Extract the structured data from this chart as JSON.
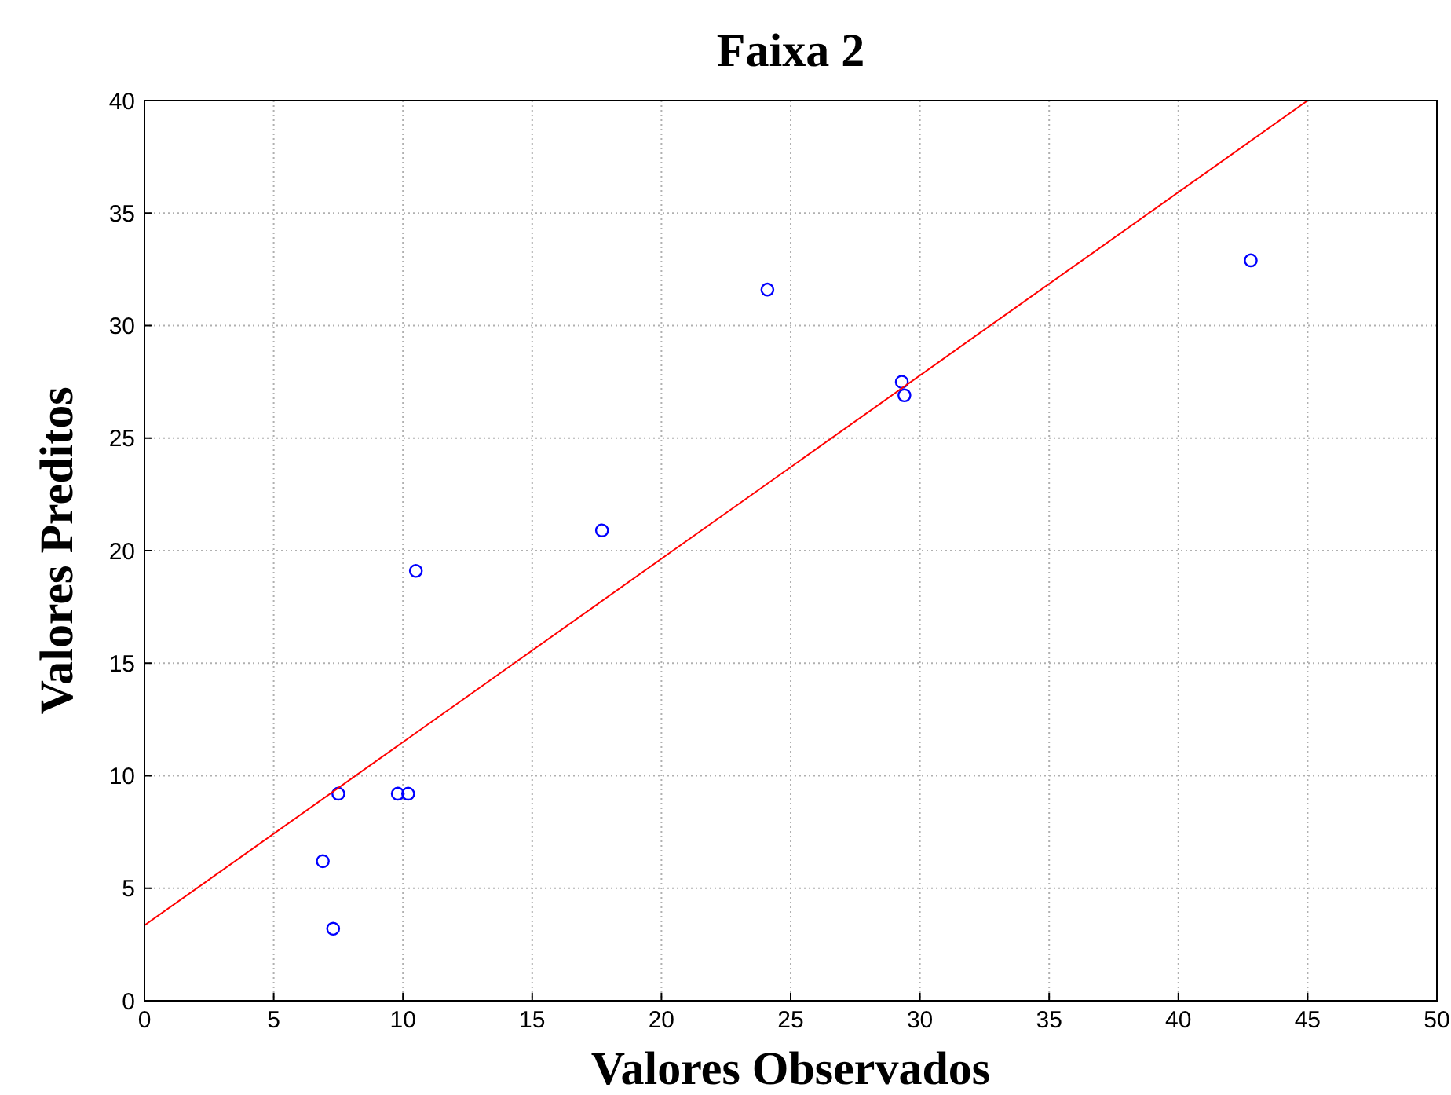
{
  "chart_data": {
    "type": "scatter",
    "title": "Faixa 2",
    "xlabel": "Valores Observados",
    "ylabel": "Valores Preditos",
    "xlim": [
      0,
      50
    ],
    "ylim": [
      0,
      40
    ],
    "xticks": [
      0,
      5,
      10,
      15,
      20,
      25,
      30,
      35,
      40,
      45,
      50
    ],
    "yticks": [
      0,
      5,
      10,
      15,
      20,
      25,
      30,
      35,
      40
    ],
    "grid": true,
    "series": [
      {
        "marker": "circle",
        "color": "#0000ff",
        "x": [
          6.9,
          7.3,
          7.5,
          9.8,
          10.2,
          10.5,
          17.7,
          24.1,
          29.3,
          29.4,
          42.8
        ],
        "values": [
          6.2,
          3.2,
          9.2,
          9.2,
          9.2,
          19.1,
          20.9,
          31.6,
          27.5,
          26.9,
          32.9
        ]
      },
      {
        "type": "line",
        "color": "#ff0000",
        "line_style": "solid",
        "x": [
          0,
          45
        ],
        "values": [
          3.35,
          40
        ]
      }
    ]
  }
}
